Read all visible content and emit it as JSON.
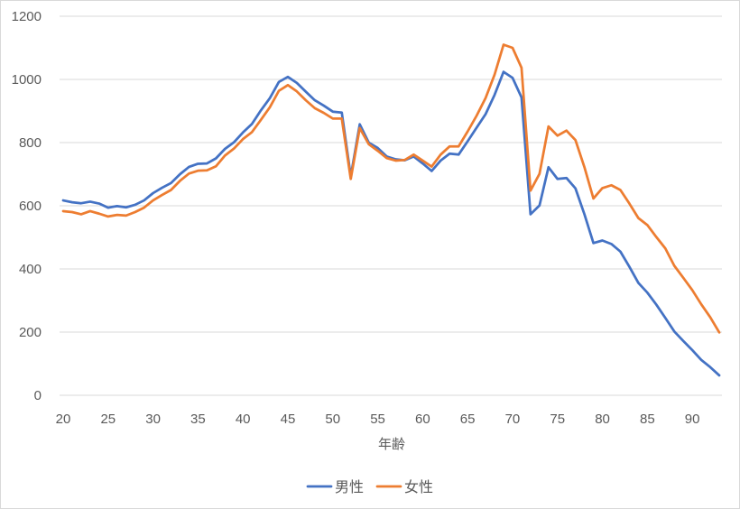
{
  "chart_data": {
    "type": "line",
    "title": "",
    "xlabel": "年齢",
    "ylabel": "",
    "xlim": [
      20,
      93
    ],
    "ylim": [
      0,
      1200
    ],
    "yticks": [
      0,
      200,
      400,
      600,
      800,
      1000,
      1200
    ],
    "xticks": [
      20,
      25,
      30,
      35,
      40,
      45,
      50,
      55,
      60,
      65,
      70,
      75,
      80,
      85,
      90
    ],
    "grid": true,
    "legend": "bottom",
    "x": [
      20,
      21,
      22,
      23,
      24,
      25,
      26,
      27,
      28,
      29,
      30,
      31,
      32,
      33,
      34,
      35,
      36,
      37,
      38,
      39,
      40,
      41,
      42,
      43,
      44,
      45,
      46,
      47,
      48,
      49,
      50,
      51,
      52,
      53,
      54,
      55,
      56,
      57,
      58,
      59,
      60,
      61,
      62,
      63,
      64,
      65,
      66,
      67,
      68,
      69,
      70,
      71,
      72,
      73,
      74,
      75,
      76,
      77,
      78,
      79,
      80,
      81,
      82,
      83,
      84,
      85,
      86,
      87,
      88,
      89,
      90,
      91,
      92,
      93
    ],
    "series": [
      {
        "name": "男性",
        "color": "#4472c4",
        "values": [
          617,
          611,
          608,
          613,
          607,
          594,
          599,
          595,
          603,
          617,
          640,
          657,
          672,
          700,
          723,
          733,
          734,
          750,
          780,
          801,
          832,
          859,
          902,
          941,
          992,
          1008,
          989,
          961,
          934,
          917,
          898,
          895,
          693,
          858,
          800,
          783,
          756,
          747,
          744,
          756,
          734,
          710,
          743,
          765,
          762,
          804,
          847,
          890,
          951,
          1024,
          1005,
          943,
          573,
          601,
          722,
          685,
          688,
          655,
          573,
          482,
          490,
          479,
          455,
          407,
          356,
          325,
          287,
          245,
          202,
          172,
          143,
          112,
          89,
          63
        ]
      },
      {
        "name": "女性",
        "color": "#ed7d31",
        "values": [
          583,
          580,
          573,
          583,
          575,
          566,
          571,
          569,
          580,
          594,
          617,
          634,
          650,
          679,
          702,
          711,
          712,
          725,
          759,
          781,
          811,
          833,
          872,
          912,
          964,
          982,
          962,
          934,
          909,
          894,
          876,
          876,
          685,
          846,
          795,
          774,
          751,
          743,
          745,
          762,
          743,
          724,
          762,
          788,
          788,
          835,
          885,
          941,
          1015,
          1110,
          1100,
          1037,
          648,
          701,
          851,
          822,
          838,
          808,
          722,
          623,
          656,
          665,
          650,
          607,
          561,
          539,
          501,
          465,
          410,
          372,
          333,
          288,
          247,
          199
        ]
      }
    ]
  }
}
